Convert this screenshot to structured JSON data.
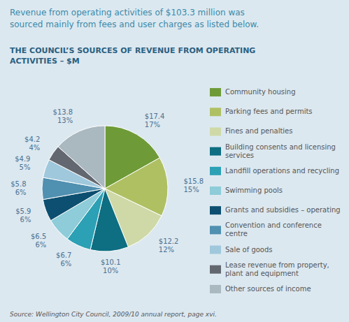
{
  "chart_data": {
    "type": "pie",
    "title": "THE COUNCIL’S SOURCES OF REVENUE FROM OPERATING\nACTIVITIES – $M",
    "subtitle": "Revenue from operating activities of $103.3 million was\nsourced mainly from fees and user charges as listed below.",
    "annotations": [
      "Source: Wellington City Council, 2009/10 annual report, page xvi."
    ],
    "categories": [
      "Community housing",
      "Parking fees and permits",
      "Fines and penalties",
      "Building consents and licensing services",
      "Landfill operations and recycling",
      "Swimming pools",
      "Grants and subsidies – operating",
      "Convention and conference centre",
      "Sale of goods",
      "Lease revenue from property, plant and equipment",
      "Other sources of income"
    ],
    "values": [
      17.4,
      15.8,
      12.2,
      10.1,
      6.7,
      6.5,
      5.9,
      5.8,
      4.9,
      4.2,
      13.8
    ],
    "value_labels": [
      "$17.4\n17%",
      "$15.8\n15%",
      "$12.2\n12%",
      "$10.1\n10%",
      "$6.7\n6%",
      "$6.5\n6%",
      "$5.9\n6%",
      "$5.8\n6%",
      "$4.9\n5%",
      "$4.2\n4%",
      "$13.8\n13%"
    ],
    "colors": [
      "#6e9b37",
      "#afc063",
      "#cfd9a8",
      "#0e6e82",
      "#2ca0b4",
      "#8dccd8",
      "#0d4f70",
      "#5090b0",
      "#a0c8dc",
      "#636870",
      "#aab8c0"
    ],
    "data_labels": true,
    "legend": "right"
  }
}
